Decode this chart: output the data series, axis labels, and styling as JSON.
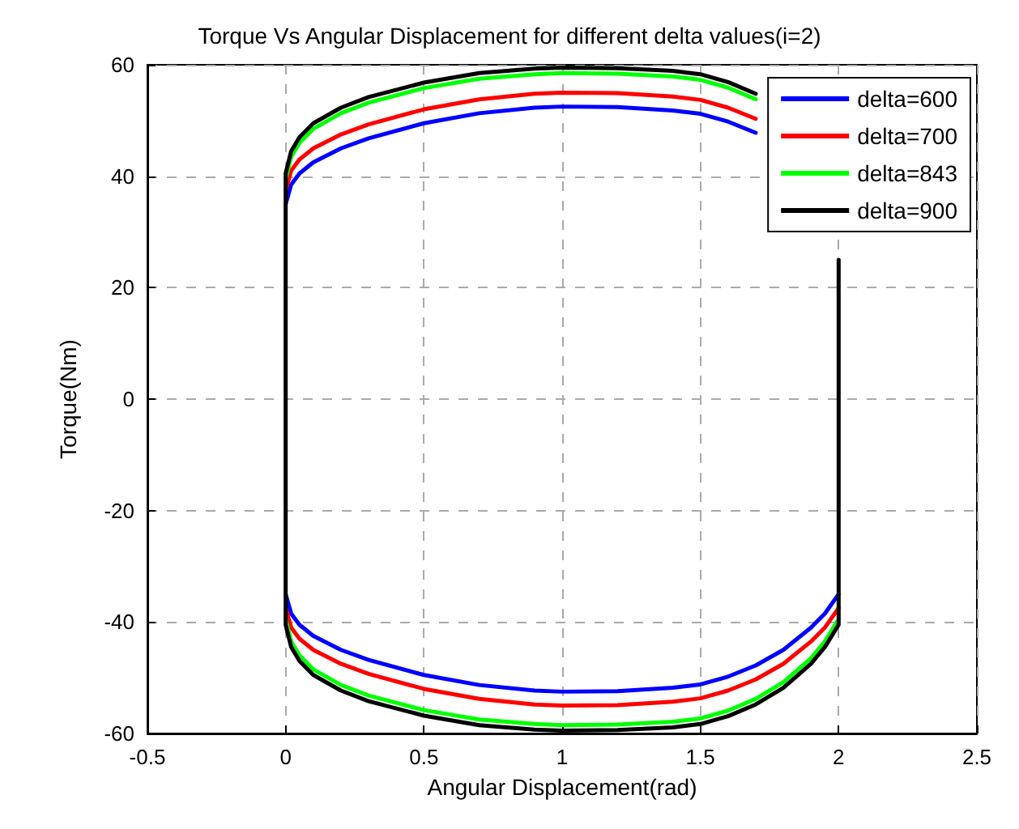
{
  "chart_data": {
    "type": "line",
    "title": "Torque Vs Angular Displacement for different delta values(i=2)",
    "xlabel": "Angular Displacement(rad)",
    "ylabel": "Torque(Nm)",
    "xlim": [
      -0.5,
      2.5
    ],
    "xticks": [
      -0.5,
      0,
      0.5,
      1,
      1.5,
      2,
      2.5
    ],
    "ylim": [
      -60,
      60
    ],
    "yticks": [
      -60,
      -40,
      -20,
      0,
      20,
      40,
      60
    ],
    "grid": true,
    "legend": "top right",
    "marker": "none",
    "line_style": "solid",
    "series": [
      {
        "name": "delta=600",
        "color": "#0000ff",
        "x": [
          0,
          0.02,
          0.05,
          0.1,
          0.2,
          0.3,
          0.5,
          0.7,
          0.9,
          1,
          1.2,
          1.4,
          1.5,
          1.6,
          1.7,
          1.8,
          2,
          1.95,
          1.9,
          1.8,
          1.7,
          1.6,
          1.5,
          1.4,
          1.2,
          1,
          0.9,
          0.7,
          0.5,
          0.3,
          0.2,
          0.1,
          0.05,
          0.02,
          0
        ],
        "values": [
          35,
          38.5,
          40.5,
          42.5,
          45,
          46.8,
          49.5,
          51.3,
          52.3,
          52.5,
          52.4,
          51.8,
          51.2,
          49.8,
          47.8,
          null,
          -35,
          -38.5,
          -41,
          -45,
          -47.8,
          -49.8,
          -51.2,
          -51.8,
          -52.4,
          -52.5,
          -52.3,
          -51.3,
          -49.5,
          -46.8,
          -45,
          -42.5,
          -40.5,
          -38.5,
          -35
        ]
      },
      {
        "name": "delta=700",
        "color": "#ff0000",
        "x": [
          0,
          0.02,
          0.05,
          0.1,
          0.2,
          0.3,
          0.5,
          0.7,
          0.9,
          1,
          1.2,
          1.4,
          1.5,
          1.6,
          1.7,
          1.8,
          2,
          1.95,
          1.9,
          1.8,
          1.7,
          1.6,
          1.5,
          1.4,
          1.2,
          1,
          0.9,
          0.7,
          0.5,
          0.3,
          0.2,
          0.1,
          0.05,
          0.02,
          0
        ],
        "values": [
          37.5,
          41,
          43,
          45,
          47.5,
          49.3,
          52,
          53.8,
          54.8,
          55,
          54.9,
          54.3,
          53.7,
          52.3,
          50.3,
          null,
          -37.5,
          -41,
          -43.5,
          -47.5,
          -50.3,
          -52.3,
          -53.7,
          -54.3,
          -54.9,
          -55,
          -54.8,
          -53.8,
          -52,
          -49.3,
          -47.5,
          -45,
          -43,
          -41,
          -37.5
        ]
      },
      {
        "name": "delta=843",
        "color": "#00ff00",
        "x": [
          0,
          0.02,
          0.05,
          0.1,
          0.2,
          0.3,
          0.5,
          0.7,
          0.9,
          1,
          1.2,
          1.4,
          1.5,
          1.6,
          1.7,
          1.8,
          2,
          1.95,
          1.9,
          1.8,
          1.7,
          1.6,
          1.5,
          1.4,
          1.2,
          1,
          0.9,
          0.7,
          0.5,
          0.3,
          0.2,
          0.1,
          0.05,
          0.02,
          0
        ],
        "values": [
          39.5,
          43.5,
          46,
          48.5,
          51.3,
          53.2,
          55.8,
          57.5,
          58.3,
          58.5,
          58.4,
          57.9,
          57.3,
          55.9,
          53.8,
          null,
          -39.5,
          -43.5,
          -46.5,
          -50.8,
          -53.8,
          -55.9,
          -57.3,
          -57.9,
          -58.4,
          -58.5,
          -58.3,
          -57.5,
          -55.8,
          -53.2,
          -51.3,
          -48.5,
          -46,
          -43.5,
          -39.5
        ]
      },
      {
        "name": "delta=900",
        "color": "#000000",
        "x": [
          0,
          0.02,
          0.05,
          0.1,
          0.2,
          0.3,
          0.5,
          0.7,
          0.9,
          1,
          1.2,
          1.4,
          1.5,
          1.6,
          1.7,
          1.8,
          2,
          2,
          1.95,
          1.9,
          1.8,
          1.7,
          1.6,
          1.5,
          1.4,
          1.2,
          1,
          0.9,
          0.7,
          0.5,
          0.3,
          0.2,
          0.1,
          0.05,
          0.02,
          0,
          0
        ],
        "values": [
          40.5,
          44.5,
          47,
          49.5,
          52.3,
          54.2,
          56.8,
          58.5,
          59.3,
          59.5,
          59.4,
          58.9,
          58.3,
          56.9,
          54.8,
          null,
          25,
          -40.5,
          -44.5,
          -47.5,
          -51.8,
          -54.8,
          -56.9,
          -58.3,
          -58.9,
          -59.4,
          -59.5,
          -59.3,
          -58.5,
          -56.8,
          -54.2,
          -52.3,
          -49.5,
          -47,
          -44.5,
          -40.5,
          40.5
        ]
      }
    ]
  }
}
